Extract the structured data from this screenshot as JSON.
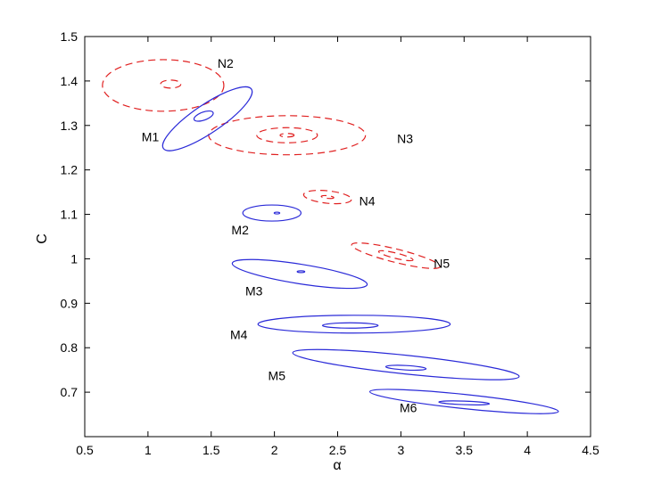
{
  "chart_data": {
    "type": "contour",
    "title": "",
    "xlabel": "α",
    "ylabel": "C",
    "xlim": [
      0.5,
      4.5
    ],
    "ylim": [
      0.6,
      1.5
    ],
    "xticks": [
      "0.5",
      "1",
      "1.5",
      "2",
      "2.5",
      "3",
      "3.5",
      "4",
      "4.5"
    ],
    "yticks": [
      "0.7",
      "0.8",
      "0.9",
      "1",
      "1.1",
      "1.2",
      "1.3",
      "1.4",
      "1.5"
    ],
    "colors": {
      "M": "#2a2ad8",
      "N": "#e02020"
    },
    "series": [
      {
        "label": "N2",
        "style": "dashed",
        "color": "#e02020",
        "contours": [
          {
            "cx": 1.12,
            "cy": 1.39,
            "rx": 0.48,
            "ry": 0.058,
            "tilt": 0
          },
          {
            "cx": 1.18,
            "cy": 1.393,
            "rx": 0.08,
            "ry": 0.009,
            "tilt": 0
          }
        ],
        "label_at": [
          1.55,
          1.44
        ]
      },
      {
        "label": "N3",
        "style": "dashed",
        "color": "#e02020",
        "contours": [
          {
            "cx": 2.1,
            "cy": 1.278,
            "rx": 0.62,
            "ry": 0.044,
            "tilt": 0
          },
          {
            "cx": 2.1,
            "cy": 1.278,
            "rx": 0.24,
            "ry": 0.017,
            "tilt": 0
          },
          {
            "cx": 2.1,
            "cy": 1.278,
            "rx": 0.055,
            "ry": 0.004,
            "tilt": 0
          }
        ],
        "label_at": [
          2.97,
          1.27
        ]
      },
      {
        "label": "N4",
        "style": "dashed",
        "color": "#e02020",
        "contours": [
          {
            "cx": 2.42,
            "cy": 1.139,
            "rx": 0.19,
            "ry": 0.014,
            "tilt": 6
          },
          {
            "cx": 2.42,
            "cy": 1.139,
            "rx": 0.05,
            "ry": 0.003,
            "tilt": 6
          }
        ],
        "label_at": [
          2.67,
          1.13
        ]
      },
      {
        "label": "N5",
        "style": "dashed",
        "color": "#e02020",
        "contours": [
          {
            "cx": 2.96,
            "cy": 1.007,
            "rx": 0.36,
            "ry": 0.015,
            "tilt": 14
          },
          {
            "cx": 2.96,
            "cy": 1.007,
            "rx": 0.14,
            "ry": 0.006,
            "tilt": 14
          }
        ],
        "label_at": [
          3.26,
          0.99
        ]
      },
      {
        "label": "M1",
        "style": "solid",
        "color": "#2a2ad8",
        "contours": [
          {
            "cx": 1.47,
            "cy": 1.315,
            "rx": 0.42,
            "ry": 0.032,
            "tilt": -34
          },
          {
            "cx": 1.44,
            "cy": 1.321,
            "rx": 0.08,
            "ry": 0.009,
            "tilt": -20
          }
        ],
        "label_at": [
          0.95,
          1.275
        ]
      },
      {
        "label": "M2",
        "style": "solid",
        "color": "#2a2ad8",
        "contours": [
          {
            "cx": 1.98,
            "cy": 1.103,
            "rx": 0.23,
            "ry": 0.018,
            "tilt": 0
          },
          {
            "cx": 2.02,
            "cy": 1.103,
            "rx": 0.022,
            "ry": 0.002,
            "tilt": 0
          }
        ],
        "label_at": [
          1.66,
          1.065
        ]
      },
      {
        "label": "M3",
        "style": "solid",
        "color": "#2a2ad8",
        "contours": [
          {
            "cx": 2.2,
            "cy": 0.966,
            "rx": 0.54,
            "ry": 0.022,
            "tilt": 9
          },
          {
            "cx": 2.21,
            "cy": 0.971,
            "rx": 0.03,
            "ry": 0.002,
            "tilt": 0
          }
        ],
        "label_at": [
          1.77,
          0.928
        ]
      },
      {
        "label": "M4",
        "style": "solid",
        "color": "#2a2ad8",
        "contours": [
          {
            "cx": 2.63,
            "cy": 0.853,
            "rx": 0.76,
            "ry": 0.02,
            "tilt": 0
          },
          {
            "cx": 2.6,
            "cy": 0.85,
            "rx": 0.22,
            "ry": 0.006,
            "tilt": 0
          }
        ],
        "label_at": [
          1.65,
          0.83
        ]
      },
      {
        "label": "M5",
        "style": "solid",
        "color": "#2a2ad8",
        "contours": [
          {
            "cx": 3.04,
            "cy": 0.762,
            "rx": 0.9,
            "ry": 0.021,
            "tilt": 6
          },
          {
            "cx": 3.04,
            "cy": 0.755,
            "rx": 0.16,
            "ry": 0.005,
            "tilt": 3
          }
        ],
        "label_at": [
          1.95,
          0.737
        ]
      },
      {
        "label": "M6",
        "style": "solid",
        "color": "#2a2ad8",
        "contours": [
          {
            "cx": 3.5,
            "cy": 0.679,
            "rx": 0.75,
            "ry": 0.016,
            "tilt": 6
          },
          {
            "cx": 3.5,
            "cy": 0.676,
            "rx": 0.2,
            "ry": 0.004,
            "tilt": 2
          }
        ],
        "label_at": [
          2.99,
          0.665
        ]
      }
    ]
  }
}
